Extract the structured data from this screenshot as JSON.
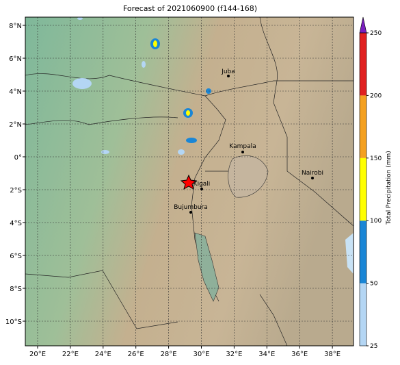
{
  "title": "Forecast of 2021060900 (f144-168)",
  "map": {
    "lon_ticks": [
      {
        "value": 20,
        "label": "20°E"
      },
      {
        "value": 22,
        "label": "22°E"
      },
      {
        "value": 24,
        "label": "24°E"
      },
      {
        "value": 26,
        "label": "26°E"
      },
      {
        "value": 28,
        "label": "28°E"
      },
      {
        "value": 30,
        "label": "30°E"
      },
      {
        "value": 32,
        "label": "32°E"
      },
      {
        "value": 34,
        "label": "34°E"
      },
      {
        "value": 36,
        "label": "36°E"
      },
      {
        "value": 38,
        "label": "38°E"
      }
    ],
    "lat_ticks": [
      {
        "value": 8,
        "label": "8°N"
      },
      {
        "value": 6,
        "label": "6°N"
      },
      {
        "value": 4,
        "label": "4°N"
      },
      {
        "value": 2,
        "label": "2°N"
      },
      {
        "value": 0,
        "label": "0°"
      },
      {
        "value": -2,
        "label": "2°S"
      },
      {
        "value": -4,
        "label": "4°S"
      },
      {
        "value": -6,
        "label": "6°S"
      },
      {
        "value": -8,
        "label": "8°S"
      },
      {
        "value": -10,
        "label": "10°S"
      }
    ],
    "cities": [
      "Juba",
      "Kampala",
      "Nairobi",
      "Kigali",
      "Bujumbura"
    ]
  },
  "colorbar": {
    "label": "Total Precipitation (mm)",
    "ticks": [
      25,
      50,
      100,
      150,
      200,
      250
    ],
    "colors": [
      "#b4d6f4",
      "#1a86d6",
      "#ffff00",
      "#f4a020",
      "#e02020"
    ],
    "over_color": "#7a1fbf"
  }
}
